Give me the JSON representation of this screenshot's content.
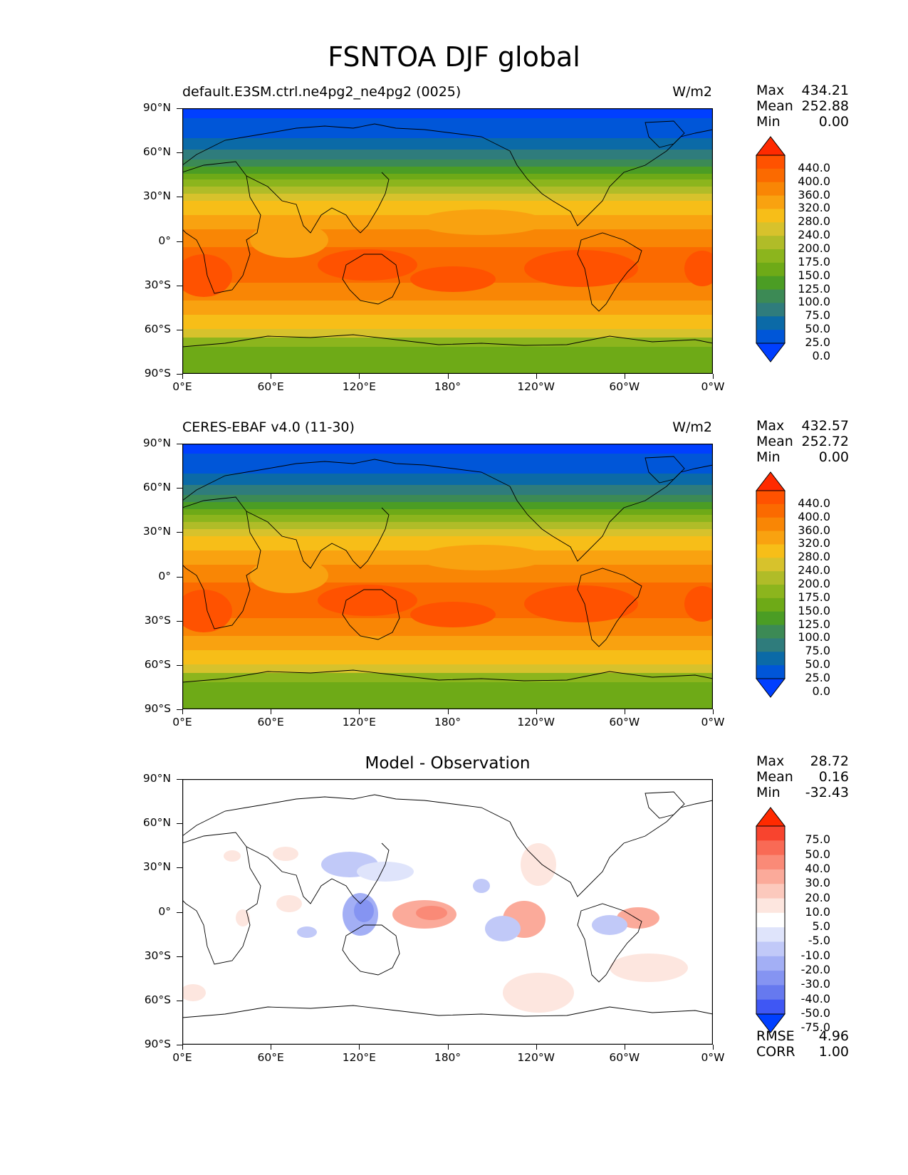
{
  "title": "FSNTOA DJF global",
  "axes": {
    "yticks": [
      "90°N",
      "60°N",
      "30°N",
      "0°",
      "30°S",
      "60°S",
      "90°S"
    ],
    "xticks": [
      "0°E",
      "60°E",
      "120°E",
      "180°",
      "120°W",
      "60°W",
      "0°W"
    ]
  },
  "panels": [
    {
      "title": "default.E3SM.ctrl.ne4pg2_ne4pg2 (0025)",
      "units": "W/m2",
      "stats": {
        "max_label": "Max",
        "max": "434.21",
        "mean_label": "Mean",
        "mean": "252.88",
        "min_label": "Min",
        "min": "0.00"
      },
      "colorbar": {
        "labels": [
          "440.0",
          "400.0",
          "360.0",
          "320.0",
          "280.0",
          "240.0",
          "200.0",
          "175.0",
          "150.0",
          "125.0",
          "100.0",
          "75.0",
          "50.0",
          "25.0",
          "0.0"
        ],
        "colors": [
          "#ff2a00",
          "#ff5200",
          "#fb6a00",
          "#f98605",
          "#f9a210",
          "#f7be18",
          "#d7c22c",
          "#b0bc28",
          "#8cb51d",
          "#6eaa17",
          "#4b9d24",
          "#3c8a55",
          "#2f7c7c",
          "#0b6aa7",
          "#0056d8",
          "#003fff"
        ]
      }
    },
    {
      "title": "CERES-EBAF v4.0 (11-30)",
      "units": "W/m2",
      "stats": {
        "max_label": "Max",
        "max": "432.57",
        "mean_label": "Mean",
        "mean": "252.72",
        "min_label": "Min",
        "min": "0.00"
      },
      "colorbar": {
        "labels": [
          "440.0",
          "400.0",
          "360.0",
          "320.0",
          "280.0",
          "240.0",
          "200.0",
          "175.0",
          "150.0",
          "125.0",
          "100.0",
          "75.0",
          "50.0",
          "25.0",
          "0.0"
        ],
        "colors": [
          "#ff2a00",
          "#ff5200",
          "#fb6a00",
          "#f98605",
          "#f9a210",
          "#f7be18",
          "#d7c22c",
          "#b0bc28",
          "#8cb51d",
          "#6eaa17",
          "#4b9d24",
          "#3c8a55",
          "#2f7c7c",
          "#0b6aa7",
          "#0056d8",
          "#003fff"
        ]
      }
    },
    {
      "title": "Model - Observation",
      "units": "",
      "stats": {
        "max_label": "Max",
        "max": "28.72",
        "mean_label": "Mean",
        "mean": "0.16",
        "min_label": "Min",
        "min": "-32.43"
      },
      "colorbar": {
        "labels": [
          "75.0",
          "50.0",
          "40.0",
          "30.0",
          "20.0",
          "10.0",
          "5.0",
          "-5.0",
          "-10.0",
          "-20.0",
          "-30.0",
          "-40.0",
          "-50.0",
          "-75.0"
        ],
        "colors": [
          "#ff2a00",
          "#f8442e",
          "#f96a55",
          "#fa8a77",
          "#fbaa9a",
          "#fcc9bd",
          "#fde6df",
          "#ffffff",
          "#dfe4fb",
          "#c1c9f8",
          "#a3aff5",
          "#8594f2",
          "#6679ef",
          "#3f57f4",
          "#003fff"
        ]
      },
      "extra_stats": {
        "rmse_label": "RMSE",
        "rmse": "4.96",
        "corr_label": "CORR",
        "corr": "1.00"
      }
    }
  ]
}
